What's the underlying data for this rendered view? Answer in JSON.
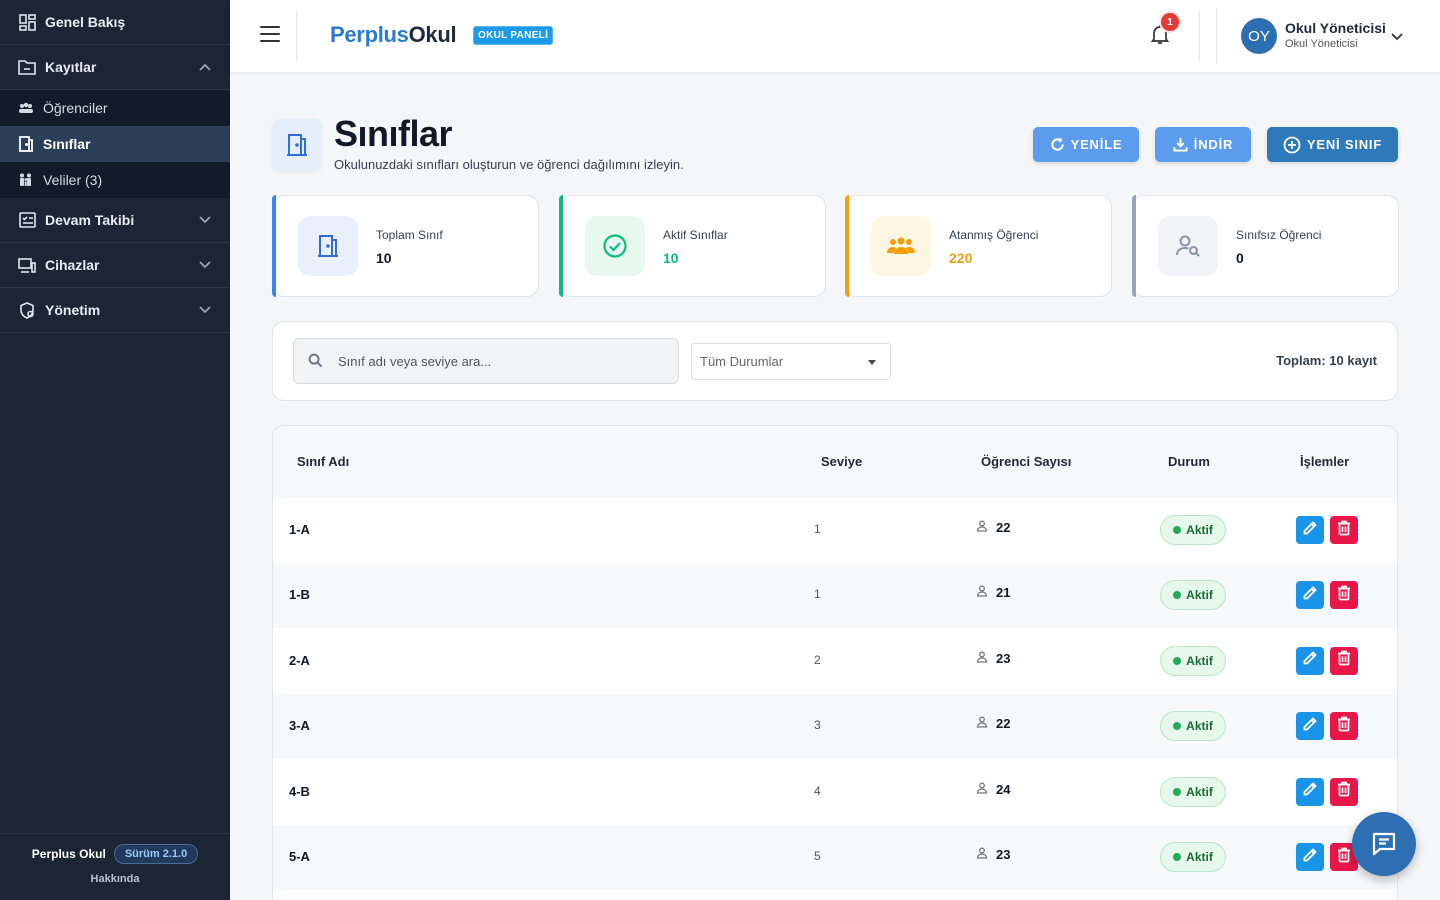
{
  "sidebar": {
    "items": [
      {
        "label": "Genel Bakış",
        "icon": "dashboard-icon"
      },
      {
        "label": "Kayıtlar",
        "icon": "folder-icon",
        "expanded": true
      },
      {
        "label": "Devam Takibi",
        "icon": "attendance-icon"
      },
      {
        "label": "Cihazlar",
        "icon": "devices-icon"
      },
      {
        "label": "Yönetim",
        "icon": "admin-icon"
      }
    ],
    "sub_items": [
      {
        "label": "Öğrenciler",
        "icon": "students-icon"
      },
      {
        "label": "Sınıflar",
        "icon": "door-icon",
        "active": true
      },
      {
        "label": "Veliler (3)",
        "icon": "family-icon"
      }
    ],
    "footer": {
      "brand": "Perplus Okul",
      "version": "Sürüm 2.1.0",
      "about": "Hakkında"
    }
  },
  "topbar": {
    "logo_part1": "Perplus",
    "logo_part2": "Okul",
    "badge": "OKUL PANELİ",
    "notification_count": "1",
    "avatar_initials": "OY",
    "user_name": "Okul Yöneticisi",
    "user_role": "Okul Yöneticisi"
  },
  "page": {
    "title": "Sınıflar",
    "subtitle": "Okulunuzdaki sınıfları oluşturun ve öğrenci dağılımını izleyin.",
    "buttons": {
      "refresh": "YENİLE",
      "download": "İNDİR",
      "new_class": "YENİ SINIF"
    }
  },
  "stats": [
    {
      "label": "Toplam Sınıf",
      "value": "10",
      "color": "#3b82f6",
      "value_color": "#111827"
    },
    {
      "label": "Aktif Sınıflar",
      "value": "10",
      "color": "#10b981",
      "value_color": "#10b981"
    },
    {
      "label": "Atanmış Öğrenci",
      "value": "220",
      "color": "#f59e0b",
      "value_color": "#f59e0b"
    },
    {
      "label": "Sınıfsız Öğrenci",
      "value": "0",
      "color": "#94a3b8",
      "value_color": "#111827"
    }
  ],
  "filters": {
    "search_placeholder": "Sınıf adı veya seviye ara...",
    "status_selected": "Tüm Durumlar",
    "total": "Toplam: 10 kayıt"
  },
  "table": {
    "headers": [
      "Sınıf Adı",
      "Seviye",
      "Öğrenci Sayısı",
      "Durum",
      "İşlemler"
    ],
    "rows": [
      {
        "name": "1-A",
        "level": "1",
        "count": "22",
        "status": "Aktif"
      },
      {
        "name": "1-B",
        "level": "1",
        "count": "21",
        "status": "Aktif"
      },
      {
        "name": "2-A",
        "level": "2",
        "count": "23",
        "status": "Aktif"
      },
      {
        "name": "3-A",
        "level": "3",
        "count": "22",
        "status": "Aktif"
      },
      {
        "name": "4-B",
        "level": "4",
        "count": "24",
        "status": "Aktif"
      },
      {
        "name": "5-A",
        "level": "5",
        "count": "23",
        "status": "Aktif"
      }
    ]
  }
}
